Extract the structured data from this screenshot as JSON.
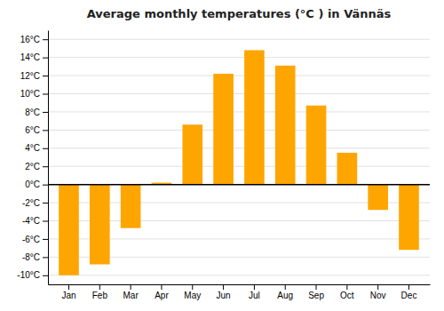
{
  "chart_data": {
    "type": "bar",
    "title": "Average monthly temperatures (°C ) in Vännäs",
    "categories": [
      "Jan",
      "Feb",
      "Mar",
      "Apr",
      "May",
      "Jun",
      "Jul",
      "Aug",
      "Sep",
      "Oct",
      "Nov",
      "Dec"
    ],
    "values": [
      -10.0,
      -8.8,
      -4.8,
      0.2,
      6.6,
      12.2,
      14.8,
      13.1,
      8.7,
      3.5,
      -2.8,
      -7.2
    ],
    "color": "#FFA500",
    "ylim": [
      -11,
      17
    ],
    "yticks": [
      {
        "value": -10,
        "label": "-10°C"
      },
      {
        "value": -8,
        "label": "-8°C"
      },
      {
        "value": -6,
        "label": "-6°C"
      },
      {
        "value": -4,
        "label": "-4°C"
      },
      {
        "value": -2,
        "label": "-2°C"
      },
      {
        "value": 0,
        "label": "0°C"
      },
      {
        "value": 2,
        "label": "2°C"
      },
      {
        "value": 4,
        "label": "4°C"
      },
      {
        "value": 6,
        "label": "6°C"
      },
      {
        "value": 8,
        "label": "8°C"
      },
      {
        "value": 10,
        "label": "10°C"
      },
      {
        "value": 12,
        "label": "12°C"
      },
      {
        "value": 14,
        "label": "14°C"
      },
      {
        "value": 16,
        "label": "16°C"
      }
    ],
    "grid": true
  }
}
